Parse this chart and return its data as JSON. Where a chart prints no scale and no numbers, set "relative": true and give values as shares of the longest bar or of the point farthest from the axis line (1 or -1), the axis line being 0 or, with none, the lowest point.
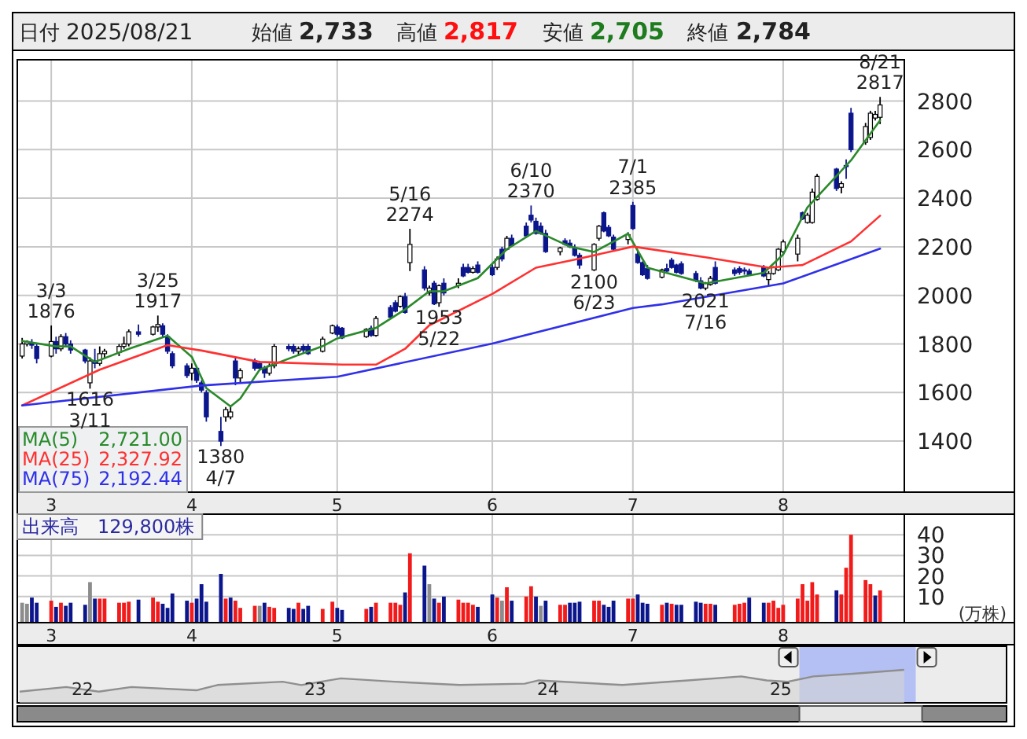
{
  "chart_data": [
    {
      "type": "candlestick",
      "x": [
        "2025-02-25",
        "2025-02-26",
        "2025-02-27",
        "2025-02-28",
        "2025-03-03",
        "2025-03-04",
        "2025-03-05",
        "2025-03-06",
        "2025-03-07",
        "2025-03-10",
        "2025-03-11",
        "2025-03-12",
        "2025-03-13",
        "2025-03-14",
        "2025-03-17",
        "2025-03-18",
        "2025-03-19",
        "2025-03-21",
        "2025-03-24",
        "2025-03-25",
        "2025-03-26",
        "2025-03-27",
        "2025-03-28",
        "2025-03-31",
        "2025-04-01",
        "2025-04-02",
        "2025-04-03",
        "2025-04-04",
        "2025-04-07",
        "2025-04-08",
        "2025-04-09",
        "2025-04-10",
        "2025-04-11",
        "2025-04-14",
        "2025-04-15",
        "2025-04-16",
        "2025-04-17",
        "2025-04-18",
        "2025-04-21",
        "2025-04-22",
        "2025-04-23",
        "2025-04-24",
        "2025-04-25",
        "2025-04-28",
        "2025-04-30",
        "2025-05-01",
        "2025-05-02",
        "2025-05-07",
        "2025-05-08",
        "2025-05-09",
        "2025-05-12",
        "2025-05-13",
        "2025-05-14",
        "2025-05-15",
        "2025-05-16",
        "2025-05-19",
        "2025-05-20",
        "2025-05-21",
        "2025-05-22",
        "2025-05-23",
        "2025-05-26",
        "2025-05-27",
        "2025-05-28",
        "2025-05-29",
        "2025-05-30",
        "2025-06-02",
        "2025-06-03",
        "2025-06-04",
        "2025-06-05",
        "2025-06-06",
        "2025-06-09",
        "2025-06-10",
        "2025-06-11",
        "2025-06-12",
        "2025-06-13",
        "2025-06-16",
        "2025-06-17",
        "2025-06-18",
        "2025-06-19",
        "2025-06-20",
        "2025-06-23",
        "2025-06-24",
        "2025-06-25",
        "2025-06-26",
        "2025-06-27",
        "2025-06-30",
        "2025-07-01",
        "2025-07-02",
        "2025-07-03",
        "2025-07-04",
        "2025-07-07",
        "2025-07-08",
        "2025-07-09",
        "2025-07-10",
        "2025-07-11",
        "2025-07-14",
        "2025-07-15",
        "2025-07-16",
        "2025-07-17",
        "2025-07-18",
        "2025-07-22",
        "2025-07-23",
        "2025-07-24",
        "2025-07-25",
        "2025-07-28",
        "2025-07-29",
        "2025-07-30",
        "2025-07-31",
        "2025-08-01",
        "2025-08-04",
        "2025-08-05",
        "2025-08-06",
        "2025-08-07",
        "2025-08-08",
        "2025-08-12",
        "2025-08-13",
        "2025-08-14",
        "2025-08-15",
        "2025-08-18",
        "2025-08-19",
        "2025-08-20",
        "2025-08-21"
      ],
      "ohlc": [
        [
          1750,
          1825,
          1740,
          1800
        ],
        [
          1800,
          1815,
          1790,
          1810
        ],
        [
          1805,
          1820,
          1780,
          1795
        ],
        [
          1790,
          1800,
          1720,
          1740
        ],
        [
          1750,
          1876,
          1745,
          1810
        ],
        [
          1810,
          1830,
          1760,
          1780
        ],
        [
          1780,
          1840,
          1770,
          1830
        ],
        [
          1830,
          1845,
          1790,
          1800
        ],
        [
          1800,
          1815,
          1760,
          1775
        ],
        [
          1775,
          1780,
          1720,
          1730
        ],
        [
          1640,
          1745,
          1616,
          1730
        ],
        [
          1730,
          1780,
          1700,
          1720
        ],
        [
          1720,
          1790,
          1710,
          1760
        ],
        [
          1760,
          1780,
          1740,
          1770
        ],
        [
          1765,
          1800,
          1750,
          1790
        ],
        [
          1790,
          1830,
          1780,
          1800
        ],
        [
          1800,
          1860,
          1790,
          1850
        ],
        [
          1850,
          1880,
          1830,
          1840
        ],
        [
          1840,
          1875,
          1835,
          1870
        ],
        [
          1870,
          1917,
          1850,
          1880
        ],
        [
          1875,
          1885,
          1830,
          1840
        ],
        [
          1830,
          1840,
          1760,
          1770
        ],
        [
          1760,
          1770,
          1700,
          1710
        ],
        [
          1710,
          1720,
          1660,
          1670
        ],
        [
          1680,
          1720,
          1650,
          1700
        ],
        [
          1700,
          1710,
          1640,
          1650
        ],
        [
          1640,
          1650,
          1600,
          1610
        ],
        [
          1600,
          1610,
          1480,
          1500
        ],
        [
          1440,
          1500,
          1380,
          1400
        ],
        [
          1500,
          1540,
          1480,
          1530
        ],
        [
          1500,
          1540,
          1490,
          1520
        ],
        [
          1730,
          1745,
          1630,
          1660
        ],
        [
          1660,
          1700,
          1640,
          1690
        ],
        [
          1730,
          1740,
          1690,
          1700
        ],
        [
          1720,
          1730,
          1690,
          1700
        ],
        [
          1700,
          1710,
          1660,
          1680
        ],
        [
          1680,
          1720,
          1670,
          1710
        ],
        [
          1710,
          1800,
          1700,
          1790
        ],
        [
          1790,
          1800,
          1770,
          1780
        ],
        [
          1790,
          1800,
          1760,
          1770
        ],
        [
          1770,
          1790,
          1750,
          1780
        ],
        [
          1790,
          1800,
          1760,
          1775
        ],
        [
          1790,
          1800,
          1755,
          1760
        ],
        [
          1770,
          1830,
          1765,
          1820
        ],
        [
          1845,
          1880,
          1840,
          1875
        ],
        [
          1870,
          1880,
          1830,
          1840
        ],
        [
          1865,
          1870,
          1820,
          1825
        ],
        [
          1830,
          1865,
          1825,
          1860
        ],
        [
          1865,
          1875,
          1830,
          1835
        ],
        [
          1835,
          1915,
          1830,
          1905
        ],
        [
          1950,
          1960,
          1905,
          1910
        ],
        [
          1970,
          1980,
          1930,
          1935
        ],
        [
          1955,
          2000,
          1950,
          1995
        ],
        [
          1995,
          2010,
          1925,
          1930
        ],
        [
          2135,
          2274,
          2100,
          2210
        ],
        [
          2105,
          2120,
          2020,
          2030
        ],
        [
          2010,
          2040,
          2000,
          2030
        ],
        [
          2050,
          2060,
          1960,
          1965
        ],
        [
          1970,
          2045,
          1953,
          2040
        ],
        [
          2050,
          2070,
          2000,
          2010
        ],
        [
          2040,
          2070,
          2030,
          2050
        ],
        [
          2115,
          2130,
          2075,
          2080
        ],
        [
          2115,
          2130,
          2090,
          2095
        ],
        [
          2095,
          2120,
          2090,
          2110
        ],
        [
          2125,
          2140,
          2090,
          2095
        ],
        [
          2115,
          2130,
          2080,
          2085
        ],
        [
          2115,
          2160,
          2105,
          2150
        ],
        [
          2190,
          2200,
          2140,
          2150
        ],
        [
          2190,
          2245,
          2185,
          2235
        ],
        [
          2235,
          2250,
          2200,
          2205
        ],
        [
          2285,
          2300,
          2240,
          2245
        ],
        [
          2330,
          2370,
          2300,
          2310
        ],
        [
          2305,
          2320,
          2250,
          2255
        ],
        [
          2285,
          2300,
          2250,
          2255
        ],
        [
          2255,
          2270,
          2175,
          2180
        ],
        [
          2180,
          2200,
          2165,
          2195
        ],
        [
          2225,
          2235,
          2205,
          2210
        ],
        [
          2215,
          2230,
          2195,
          2200
        ],
        [
          2195,
          2210,
          2160,
          2165
        ],
        [
          2165,
          2175,
          2110,
          2125
        ],
        [
          2105,
          2215,
          2100,
          2210
        ],
        [
          2235,
          2290,
          2225,
          2285
        ],
        [
          2340,
          2345,
          2260,
          2265
        ],
        [
          2280,
          2290,
          2240,
          2245
        ],
        [
          2240,
          2250,
          2185,
          2190
        ],
        [
          2230,
          2260,
          2210,
          2250
        ],
        [
          2370,
          2385,
          2270,
          2275
        ],
        [
          2170,
          2180,
          2130,
          2135
        ],
        [
          2135,
          2140,
          2080,
          2085
        ],
        [
          2110,
          2125,
          2065,
          2070
        ],
        [
          2075,
          2110,
          2070,
          2105
        ],
        [
          2110,
          2130,
          2090,
          2100
        ],
        [
          2145,
          2155,
          2110,
          2115
        ],
        [
          2125,
          2130,
          2090,
          2095
        ],
        [
          2130,
          2140,
          2085,
          2090
        ],
        [
          2090,
          2100,
          2055,
          2060
        ],
        [
          2060,
          2075,
          2025,
          2030
        ],
        [
          2030,
          2055,
          2021,
          2050
        ],
        [
          2045,
          2080,
          2040,
          2070
        ],
        [
          2115,
          2140,
          2045,
          2050
        ],
        [
          2105,
          2115,
          2080,
          2090
        ],
        [
          2110,
          2120,
          2085,
          2095
        ],
        [
          2105,
          2115,
          2085,
          2100
        ],
        [
          2100,
          2110,
          2080,
          2085
        ],
        [
          2115,
          2125,
          2075,
          2080
        ],
        [
          2065,
          2100,
          2040,
          2090
        ],
        [
          2090,
          2120,
          2085,
          2115
        ],
        [
          2105,
          2195,
          2100,
          2190
        ],
        [
          2180,
          2230,
          2170,
          2220
        ],
        [
          2170,
          2250,
          2140,
          2235
        ],
        [
          2340,
          2345,
          2310,
          2315
        ],
        [
          2300,
          2340,
          2295,
          2330
        ],
        [
          2300,
          2440,
          2295,
          2425
        ],
        [
          2395,
          2500,
          2390,
          2490
        ],
        [
          2520,
          2525,
          2430,
          2440
        ],
        [
          2445,
          2470,
          2420,
          2460
        ],
        [
          2535,
          2560,
          2480,
          2530
        ],
        [
          2750,
          2772,
          2590,
          2600
        ],
        [
          2630,
          2710,
          2620,
          2695
        ],
        [
          2650,
          2760,
          2640,
          2750
        ],
        [
          2730,
          2760,
          2720,
          2745
        ],
        [
          2733,
          2817,
          2705,
          2784
        ]
      ],
      "series": [
        {
          "name": "MA(5)  2,721.00",
          "type": "line",
          "color": "#2a8a2a",
          "x": [
            "2025-02-25",
            "2025-03-04",
            "2025-03-07",
            "2025-03-12",
            "2025-03-19",
            "2025-03-27",
            "2025-04-01",
            "2025-04-04",
            "2025-04-09",
            "2025-04-11",
            "2025-04-15",
            "2025-04-22",
            "2025-04-28",
            "2025-05-01",
            "2025-05-09",
            "2025-05-15",
            "2025-05-20",
            "2025-05-23",
            "2025-05-30",
            "2025-06-05",
            "2025-06-11",
            "2025-06-18",
            "2025-06-23",
            "2025-06-30",
            "2025-07-04",
            "2025-07-16",
            "2025-07-28",
            "2025-08-01",
            "2025-08-06",
            "2025-08-15",
            "2025-08-21"
          ],
          "values": [
            1812,
            1790,
            1790,
            1726,
            1780,
            1834,
            1747,
            1618,
            1543,
            1575,
            1694,
            1747,
            1791,
            1823,
            1866,
            1942,
            2017,
            2017,
            2071,
            2190,
            2265,
            2201,
            2179,
            2254,
            2114,
            2049,
            2093,
            2168,
            2362,
            2556,
            2721.0
          ]
        },
        {
          "name": "MA(25)  2,327.92",
          "type": "line",
          "color": "#ff3030",
          "x": [
            "2025-02-25",
            "2025-03-13",
            "2025-03-27",
            "2025-04-03",
            "2025-04-15",
            "2025-05-02",
            "2025-05-09",
            "2025-05-15",
            "2025-05-20",
            "2025-06-02",
            "2025-06-11",
            "2025-06-19",
            "2025-07-01",
            "2025-07-16",
            "2025-07-29",
            "2025-08-05",
            "2025-08-15",
            "2025-08-21"
          ],
          "values": [
            1547,
            1694,
            1795,
            1773,
            1726,
            1715,
            1715,
            1780,
            1877,
            2006,
            2114,
            2147,
            2201,
            2157,
            2114,
            2125,
            2222,
            2327.92
          ]
        },
        {
          "name": "MA(75)  2,192.44",
          "type": "line",
          "color": "#3030e8",
          "x": [
            "2025-02-25",
            "2025-04-03",
            "2025-05-01",
            "2025-06-02",
            "2025-07-01",
            "2025-07-07",
            "2025-08-01",
            "2025-08-21"
          ],
          "values": [
            1547,
            1629,
            1665,
            1802,
            1948,
            1963,
            2049,
            2192.44
          ]
        }
      ],
      "xlim": [
        "2025-02-24",
        "2025-08-26"
      ],
      "ylim": [
        1190,
        2970
      ],
      "yticks": [
        1400,
        1600,
        1800,
        2000,
        2200,
        2400,
        2600,
        2800
      ],
      "xticks": [
        {
          "value": "2025-03-03",
          "label": "3"
        },
        {
          "value": "2025-04-01",
          "label": "4"
        },
        {
          "value": "2025-05-01",
          "label": "5"
        },
        {
          "value": "2025-06-02",
          "label": "6"
        },
        {
          "value": "2025-07-01",
          "label": "7"
        },
        {
          "value": "2025-08-01",
          "label": "8"
        }
      ],
      "grid": true,
      "legend": "bottom left",
      "annotations": [
        "日付 2025/08/21",
        "始値 2,733",
        "高値 2,817",
        "安値 2,705",
        "終値 2,784",
        {
          "text": "3/3\n1876",
          "x": "2025-03-03",
          "y": 1876
        },
        {
          "text": "1616\n3/11",
          "x": "2025-03-11",
          "y": 1616
        },
        {
          "text": "3/25\n1917",
          "x": "2025-03-25",
          "y": 1917
        },
        {
          "text": "1380\n4/7",
          "x": "2025-04-07",
          "y": 1380
        },
        {
          "text": "5/16\n2274",
          "x": "2025-05-16",
          "y": 2274
        },
        {
          "text": "1953\n5/22",
          "x": "2025-05-22",
          "y": 1953
        },
        {
          "text": "6/10\n2370",
          "x": "2025-06-10",
          "y": 2370
        },
        {
          "text": "2100\n6/23",
          "x": "2025-06-23",
          "y": 2100
        },
        {
          "text": "7/1\n2385",
          "x": "2025-07-01",
          "y": 2385
        },
        {
          "text": "2021\n7/16",
          "x": "2025-07-16",
          "y": 2021
        },
        {
          "text": "8/21\n2817",
          "x": "2025-08-21",
          "y": 2817
        }
      ]
    },
    {
      "type": "bar",
      "title": "出来高　129,800株",
      "ylabel": "(万株)",
      "x": [
        "2025-02-25",
        "2025-02-26",
        "2025-02-27",
        "2025-02-28",
        "2025-03-03",
        "2025-03-04",
        "2025-03-05",
        "2025-03-06",
        "2025-03-07",
        "2025-03-10",
        "2025-03-11",
        "2025-03-12",
        "2025-03-13",
        "2025-03-14",
        "2025-03-17",
        "2025-03-18",
        "2025-03-19",
        "2025-03-21",
        "2025-03-24",
        "2025-03-25",
        "2025-03-26",
        "2025-03-27",
        "2025-03-28",
        "2025-03-31",
        "2025-04-01",
        "2025-04-02",
        "2025-04-03",
        "2025-04-04",
        "2025-04-07",
        "2025-04-08",
        "2025-04-09",
        "2025-04-10",
        "2025-04-11",
        "2025-04-14",
        "2025-04-15",
        "2025-04-16",
        "2025-04-17",
        "2025-04-18",
        "2025-04-21",
        "2025-04-22",
        "2025-04-23",
        "2025-04-24",
        "2025-04-25",
        "2025-04-28",
        "2025-04-30",
        "2025-05-01",
        "2025-05-02",
        "2025-05-07",
        "2025-05-08",
        "2025-05-09",
        "2025-05-12",
        "2025-05-13",
        "2025-05-14",
        "2025-05-15",
        "2025-05-16",
        "2025-05-19",
        "2025-05-20",
        "2025-05-21",
        "2025-05-22",
        "2025-05-23",
        "2025-05-26",
        "2025-05-27",
        "2025-05-28",
        "2025-05-29",
        "2025-05-30",
        "2025-06-02",
        "2025-06-03",
        "2025-06-04",
        "2025-06-05",
        "2025-06-06",
        "2025-06-09",
        "2025-06-10",
        "2025-06-11",
        "2025-06-12",
        "2025-06-13",
        "2025-06-16",
        "2025-06-17",
        "2025-06-18",
        "2025-06-19",
        "2025-06-20",
        "2025-06-23",
        "2025-06-24",
        "2025-06-25",
        "2025-06-26",
        "2025-06-27",
        "2025-06-30",
        "2025-07-01",
        "2025-07-02",
        "2025-07-03",
        "2025-07-04",
        "2025-07-07",
        "2025-07-08",
        "2025-07-09",
        "2025-07-10",
        "2025-07-11",
        "2025-07-14",
        "2025-07-15",
        "2025-07-16",
        "2025-07-17",
        "2025-07-18",
        "2025-07-22",
        "2025-07-23",
        "2025-07-24",
        "2025-07-25",
        "2025-07-28",
        "2025-07-29",
        "2025-07-30",
        "2025-07-31",
        "2025-08-01",
        "2025-08-04",
        "2025-08-05",
        "2025-08-06",
        "2025-08-07",
        "2025-08-08",
        "2025-08-12",
        "2025-08-13",
        "2025-08-14",
        "2025-08-15",
        "2025-08-18",
        "2025-08-19",
        "2025-08-20",
        "2025-08-21"
      ],
      "values": [
        7,
        6.5,
        9.5,
        7,
        8,
        5,
        7,
        5.5,
        7,
        6,
        17,
        9,
        9,
        9,
        7,
        7,
        7.5,
        8.5,
        9.5,
        7.5,
        6.5,
        4.5,
        11.5,
        8,
        7,
        9,
        16,
        7.5,
        21,
        9,
        9.5,
        8,
        4.5,
        5.5,
        5.5,
        7,
        5,
        4.5,
        4.5,
        4,
        7,
        4,
        5.5,
        4,
        7.5,
        4.5,
        3.5,
        4,
        5,
        7,
        7,
        7,
        6,
        12,
        31,
        25,
        16,
        9,
        7,
        10,
        8.5,
        7,
        7,
        6,
        5,
        11,
        9.5,
        8,
        14.5,
        8,
        10,
        15,
        10,
        5.5,
        8,
        6,
        6,
        7,
        7,
        7.5,
        8,
        8,
        6,
        5,
        8,
        9,
        9,
        11,
        7,
        6.5,
        6,
        7,
        6.5,
        6,
        6,
        7.5,
        7,
        6.5,
        6.5,
        6,
        6,
        6.5,
        7,
        9.5,
        7,
        7,
        8,
        4.5,
        6,
        9,
        16,
        8,
        17,
        11,
        13,
        11,
        24,
        40,
        18,
        16,
        10.5,
        12.98
      ],
      "colors": [
        "#8c8c8c",
        "#8c8c8c",
        "#0c168c",
        "#0c168c",
        "#f21b1b",
        "#0c168c",
        "#f21b1b",
        "#0c168c",
        "#0c168c",
        "#0c168c",
        "#8c8c8c",
        "#0c168c",
        "#f21b1b",
        "#f21b1b",
        "#f21b1b",
        "#f21b1b",
        "#f21b1b",
        "#0c168c",
        "#f21b1b",
        "#f21b1b",
        "#0c168c",
        "#0c168c",
        "#0c168c",
        "#0c168c",
        "#f21b1b",
        "#0c168c",
        "#0c168c",
        "#0c168c",
        "#0c168c",
        "#f21b1b",
        "#0c168c",
        "#f21b1b",
        "#f21b1b",
        "#f21b1b",
        "#8c8c8c",
        "#0c168c",
        "#f21b1b",
        "#f21b1b",
        "#0c168c",
        "#0c168c",
        "#f21b1b",
        "#0c168c",
        "#0c168c",
        "#f21b1b",
        "#f21b1b",
        "#0c168c",
        "#0c168c",
        "#f21b1b",
        "#0c168c",
        "#f21b1b",
        "#f21b1b",
        "#f21b1b",
        "#f21b1b",
        "#0c168c",
        "#f21b1b",
        "#0c168c",
        "#8c8c8c",
        "#0c168c",
        "#f21b1b",
        "#0c168c",
        "#f21b1b",
        "#f21b1b",
        "#f21b1b",
        "#f21b1b",
        "#0c168c",
        "#0c168c",
        "#f21b1b",
        "#8c8c8c",
        "#f21b1b",
        "#0c168c",
        "#f21b1b",
        "#f21b1b",
        "#0c168c",
        "#8c8c8c",
        "#0c168c",
        "#f21b1b",
        "#f21b1b",
        "#0c168c",
        "#0c168c",
        "#0c168c",
        "#f21b1b",
        "#f21b1b",
        "#0c168c",
        "#0c168c",
        "#0c168c",
        "#f21b1b",
        "#f21b1b",
        "#0c168c",
        "#0c168c",
        "#0c168c",
        "#f21b1b",
        "#0c168c",
        "#f21b1b",
        "#0c168c",
        "#0c168c",
        "#0c168c",
        "#0c168c",
        "#f21b1b",
        "#f21b1b",
        "#0c168c",
        "#f21b1b",
        "#f21b1b",
        "#f21b1b",
        "#0c168c",
        "#0c168c",
        "#f21b1b",
        "#f21b1b",
        "#f21b1b",
        "#f21b1b",
        "#f21b1b",
        "#f21b1b",
        "#f21b1b",
        "#f21b1b",
        "#f21b1b",
        "#0c168c",
        "#f21b1b",
        "#f21b1b",
        "#f21b1b",
        "#f21b1b",
        "#f21b1b",
        "#0c168c",
        "#f21b1b"
      ],
      "xlim": [
        "2025-02-24",
        "2025-08-26"
      ],
      "ylim": [
        0,
        50
      ],
      "yticks": [
        10,
        20,
        30,
        40
      ],
      "xticks": [
        {
          "value": "2025-03-03",
          "label": "3"
        },
        {
          "value": "2025-04-01",
          "label": "4"
        },
        {
          "value": "2025-05-01",
          "label": "5"
        },
        {
          "value": "2025-06-02",
          "label": "6"
        },
        {
          "value": "2025-07-01",
          "label": "7"
        },
        {
          "value": "2025-08-01",
          "label": "8"
        }
      ],
      "grid": true
    },
    {
      "type": "area",
      "relative": true,
      "x": [
        2021.73,
        2021.93,
        2022.07,
        2022.21,
        2022.49,
        2022.58,
        2022.86,
        2022.94,
        2023.11,
        2023.34,
        2023.62,
        2023.9,
        2023.96,
        2024.32,
        2024.6,
        2024.83,
        2024.94,
        2025.03,
        2025.14,
        2025.31,
        2025.53
      ],
      "series": [
        {
          "color": "#8f8f8f",
          "values": [
            0.34,
            0.48,
            0.34,
            0.48,
            0.38,
            0.54,
            0.64,
            0.54,
            0.74,
            0.64,
            0.54,
            0.58,
            0.68,
            0.54,
            0.68,
            0.8,
            0.68,
            0.64,
            0.8,
            0.88,
            1
          ]
        }
      ],
      "xlim": [
        2021.72,
        2025.97
      ],
      "xticks": [
        {
          "value": 2022,
          "label": "22"
        },
        {
          "value": 2023,
          "label": "23"
        },
        {
          "value": 2024,
          "label": "24"
        },
        {
          "value": 2025,
          "label": "25"
        }
      ],
      "bands": [
        {
          "axis": "x",
          "from": 2025.08,
          "to": 2025.58,
          "color": "#b4c0f4"
        }
      ]
    }
  ]
}
